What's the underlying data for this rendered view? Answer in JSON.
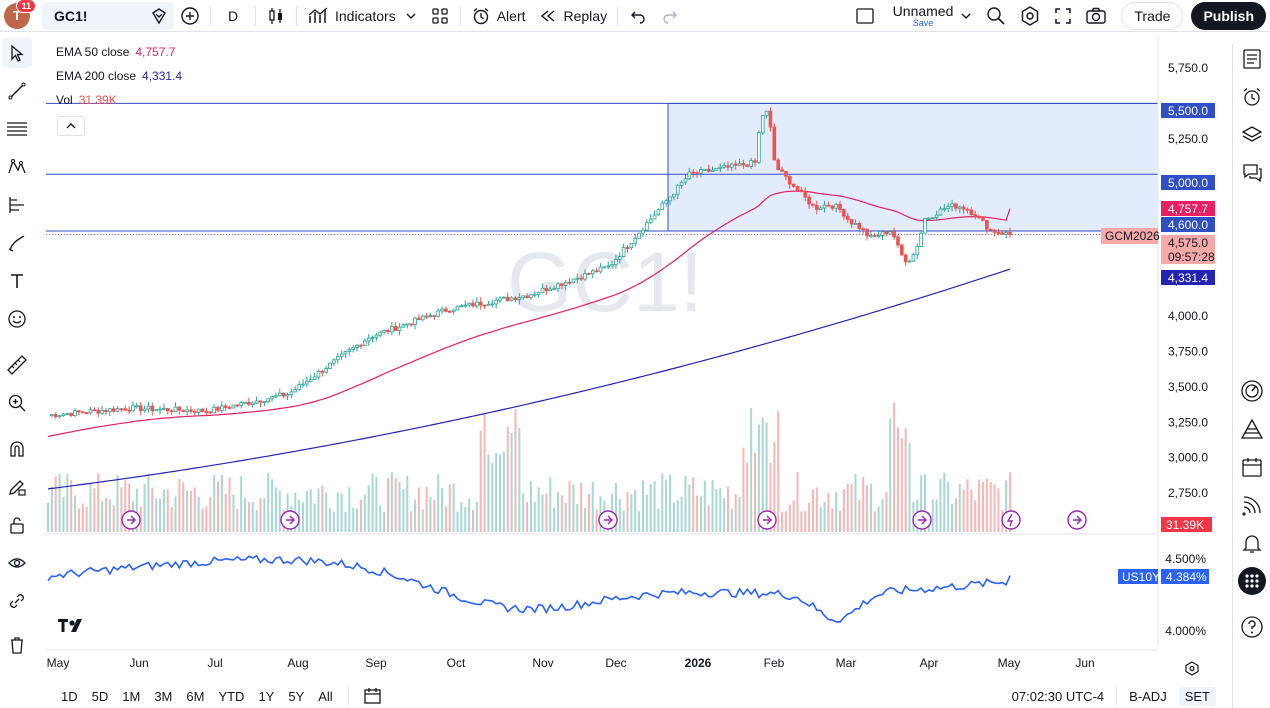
{
  "topbar": {
    "avatar_letter": "T",
    "avatar_badge": "11",
    "symbol": "GC1!",
    "interval": "D",
    "indicators": "Indicators",
    "alert": "Alert",
    "replay": "Replay",
    "layout_name": "Unnamed",
    "layout_save": "Save",
    "trade": "Trade",
    "publish": "Publish"
  },
  "legend": {
    "ema50_label": "EMA 50 close",
    "ema50_value": "4,757.7",
    "ema200_label": "EMA 200 close",
    "ema200_value": "4,331.4",
    "vol_label": "Vol",
    "vol_value": "31.39K"
  },
  "colors": {
    "up": "#26a69a",
    "down": "#ef5350",
    "ema50": "#e91e63",
    "ema200": "#2424b4",
    "box_fill": "#e3ecfd",
    "hline": "#2f4fc6",
    "us10y": "#2962ff",
    "price_tag": "#f7a9a8",
    "event": "#9c27b0"
  },
  "watermark": "GC1!",
  "price_axis": {
    "ticks": [
      "5,750.0",
      "5,250.0",
      "4,250.0",
      "4,000.0",
      "3,750.0",
      "3,500.0",
      "3,250.0",
      "3,000.0",
      "2,750.0"
    ],
    "tick_values": [
      5750,
      5250,
      4250,
      4000,
      3750,
      3500,
      3250,
      3000,
      2750
    ],
    "tags": [
      {
        "text": "5,500.0",
        "value": 5500,
        "kind": "hline"
      },
      {
        "text": "5,000.0",
        "value": 5000,
        "kind": "hline"
      },
      {
        "text": "4,757.7",
        "value": 4757.7,
        "kind": "ema50"
      },
      {
        "text": "4,600.0",
        "value": 4600,
        "kind": "hline"
      },
      {
        "text": "4,575.0",
        "value": 4575,
        "kind": "price"
      },
      {
        "text": "09:57:28",
        "value": 4520,
        "kind": "countdown"
      },
      {
        "text": "4,331.4",
        "value": 4331.4,
        "kind": "ema200"
      }
    ],
    "symbol_tag": "GCM2026",
    "vol_tag": "31.39K"
  },
  "us10y": {
    "label": "US10Y",
    "value": "4.384%",
    "ticks": [
      "4.500%",
      "4.000%"
    ]
  },
  "time_axis": [
    "May",
    "Jun",
    "Jul",
    "Aug",
    "Sep",
    "Oct",
    "Nov",
    "Dec",
    "2026",
    "Feb",
    "Mar",
    "Apr",
    "May",
    "Jun"
  ],
  "bottombar": {
    "ranges": [
      "1D",
      "5D",
      "1M",
      "3M",
      "6M",
      "YTD",
      "1Y",
      "5Y",
      "All"
    ],
    "time": "07:02:30 UTC-4",
    "badj": "B-ADJ",
    "set": "SET"
  },
  "chart_data": {
    "type": "candlestick",
    "symbol": "GC1!",
    "price_range": [
      2650,
      5850
    ],
    "key_levels": [
      5500,
      5000,
      4600
    ],
    "highlight_range": {
      "from": "2025-12",
      "to": "2026-05",
      "low": 4600,
      "high": 5500
    },
    "close_path_monthly": [
      {
        "month": "2025-05",
        "close": 3300
      },
      {
        "month": "2025-06",
        "close": 3350
      },
      {
        "month": "2025-07",
        "close": 3330
      },
      {
        "month": "2025-08",
        "close": 3450
      },
      {
        "month": "2025-09",
        "close": 3850
      },
      {
        "month": "2025-10",
        "close": 4050
      },
      {
        "month": "2025-11",
        "close": 4150
      },
      {
        "month": "2025-12",
        "close": 4350
      },
      {
        "month": "2026-01",
        "close": 5000
      },
      {
        "month": "2026-02",
        "close": 5100
      },
      {
        "month": "2026-03",
        "close": 4500
      },
      {
        "month": "2026-04",
        "close": 4700
      },
      {
        "month": "2026-05",
        "close": 4575
      }
    ],
    "ema50_last": 4757.7,
    "ema200_last": 4331.4,
    "last_price": 4575.0,
    "us10y_range": [
      3.95,
      4.6
    ],
    "us10y_last": 4.384
  }
}
